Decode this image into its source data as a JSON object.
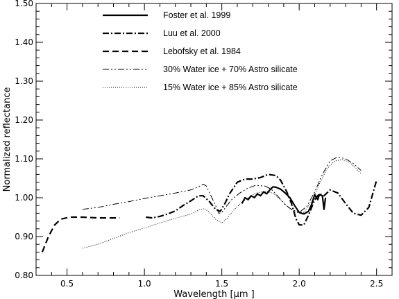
{
  "chart_data": {
    "type": "line",
    "title": "",
    "xlabel": "Wavelength [μm ]",
    "ylabel": "Normalized reflectance",
    "xlim": [
      0.3,
      2.6
    ],
    "ylim": [
      0.8,
      1.5
    ],
    "grid": false,
    "legend_position": "top-center",
    "x_ticks": [
      0.5,
      1.0,
      1.5,
      2.0,
      2.5
    ],
    "x_tick_labels": [
      "0.5",
      "1.0",
      "1.5",
      "2.0",
      "2.5"
    ],
    "y_ticks": [
      0.8,
      0.9,
      1.0,
      1.1,
      1.2,
      1.3,
      1.4,
      1.5
    ],
    "y_tick_labels": [
      "0.80",
      "0.90",
      "1.00",
      "1.10",
      "1.20",
      "1.30",
      "1.40",
      "1.50"
    ],
    "series": [
      {
        "name": "Foster et al. 1999",
        "style": "solid",
        "width": 2.2,
        "segments": [
          [
            [
              1.63,
              0.985
            ],
            [
              1.65,
              1.0
            ],
            [
              1.67,
              0.995
            ],
            [
              1.69,
              1.005
            ],
            [
              1.71,
              1.0
            ],
            [
              1.73,
              1.01
            ],
            [
              1.75,
              1.005
            ],
            [
              1.77,
              1.015
            ],
            [
              1.79,
              1.01
            ],
            [
              1.81,
              1.02
            ],
            [
              1.83,
              1.028
            ],
            [
              1.85,
              1.027
            ],
            [
              1.88,
              1.022
            ],
            [
              1.91,
              1.012
            ],
            [
              1.94,
              1.0
            ],
            [
              1.97,
              0.98
            ],
            [
              2.0,
              0.962
            ],
            [
              2.03,
              0.958
            ],
            [
              2.06,
              0.965
            ],
            [
              2.08,
              0.982
            ],
            [
              2.1,
              1.008
            ],
            [
              2.12,
              0.995
            ],
            [
              2.13,
              1.008
            ],
            [
              2.15,
              1.005
            ],
            [
              2.16,
              0.97
            ],
            [
              2.17,
              1.0
            ]
          ]
        ]
      },
      {
        "name": "Luu et al. 2000",
        "style": "dashdot",
        "width": 2.2,
        "segments": [
          [
            [
              1.01,
              0.95
            ],
            [
              1.05,
              0.948
            ],
            [
              1.1,
              0.952
            ],
            [
              1.15,
              0.958
            ],
            [
              1.2,
              0.966
            ],
            [
              1.25,
              0.98
            ],
            [
              1.3,
              0.992
            ],
            [
              1.35,
              1.005
            ],
            [
              1.38,
              1.005
            ],
            [
              1.42,
              0.99
            ],
            [
              1.46,
              0.97
            ],
            [
              1.49,
              0.965
            ],
            [
              1.52,
              0.985
            ],
            [
              1.55,
              1.01
            ],
            [
              1.6,
              1.04
            ],
            [
              1.65,
              1.048
            ],
            [
              1.7,
              1.048
            ],
            [
              1.75,
              1.052
            ],
            [
              1.8,
              1.06
            ],
            [
              1.85,
              1.057
            ],
            [
              1.88,
              1.045
            ],
            [
              1.92,
              1.015
            ],
            [
              1.95,
              0.985
            ],
            [
              1.98,
              0.945
            ],
            [
              2.0,
              0.93
            ],
            [
              2.03,
              0.93
            ],
            [
              2.06,
              0.955
            ],
            [
              2.1,
              0.995
            ],
            [
              2.13,
              1.01
            ],
            [
              2.16,
              1.005
            ],
            [
              2.2,
              1.02
            ],
            [
              2.25,
              1.012
            ],
            [
              2.3,
              0.985
            ],
            [
              2.35,
              0.96
            ],
            [
              2.4,
              0.955
            ],
            [
              2.45,
              0.975
            ],
            [
              2.5,
              1.045
            ]
          ]
        ]
      },
      {
        "name": "Lebofsky et al. 1984",
        "style": "dashed",
        "width": 2.2,
        "segments": [
          [
            [
              0.34,
              0.86
            ],
            [
              0.38,
              0.9
            ],
            [
              0.42,
              0.93
            ],
            [
              0.46,
              0.945
            ],
            [
              0.52,
              0.95
            ],
            [
              0.6,
              0.95
            ],
            [
              0.7,
              0.948
            ],
            [
              0.84,
              0.948
            ]
          ]
        ]
      },
      {
        "name": "30% Water ice + 70% Astro silicate",
        "style": "dashdotdot",
        "width": 1,
        "segments": [
          [
            [
              0.6,
              0.97
            ],
            [
              0.7,
              0.975
            ],
            [
              0.8,
              0.983
            ],
            [
              0.9,
              0.99
            ],
            [
              1.0,
              0.998
            ],
            [
              1.1,
              1.005
            ],
            [
              1.2,
              1.012
            ],
            [
              1.3,
              1.02
            ],
            [
              1.35,
              1.028
            ],
            [
              1.38,
              1.035
            ],
            [
              1.4,
              1.03
            ],
            [
              1.43,
              1.005
            ],
            [
              1.46,
              0.98
            ],
            [
              1.48,
              0.96
            ],
            [
              1.5,
              0.962
            ],
            [
              1.53,
              0.978
            ],
            [
              1.57,
              0.998
            ],
            [
              1.62,
              1.013
            ],
            [
              1.67,
              1.025
            ],
            [
              1.72,
              1.032
            ],
            [
              1.78,
              1.03
            ],
            [
              1.82,
              1.022
            ],
            [
              1.86,
              1.005
            ],
            [
              1.9,
              0.985
            ],
            [
              1.95,
              0.97
            ],
            [
              2.0,
              0.962
            ],
            [
              2.05,
              0.978
            ],
            [
              2.1,
              1.015
            ],
            [
              2.15,
              1.06
            ],
            [
              2.2,
              1.095
            ],
            [
              2.25,
              1.105
            ],
            [
              2.3,
              1.1
            ],
            [
              2.35,
              1.088
            ],
            [
              2.4,
              1.07
            ]
          ]
        ]
      },
      {
        "name": "15% Water ice + 85% Astro silicate",
        "style": "dotted",
        "width": 1,
        "segments": [
          [
            [
              0.6,
              0.87
            ],
            [
              0.7,
              0.88
            ],
            [
              0.8,
              0.895
            ],
            [
              0.9,
              0.91
            ],
            [
              1.0,
              0.922
            ],
            [
              1.1,
              0.935
            ],
            [
              1.2,
              0.947
            ],
            [
              1.3,
              0.958
            ],
            [
              1.36,
              0.97
            ],
            [
              1.39,
              0.972
            ],
            [
              1.42,
              0.962
            ],
            [
              1.46,
              0.945
            ],
            [
              1.5,
              0.935
            ],
            [
              1.53,
              0.945
            ],
            [
              1.57,
              0.965
            ],
            [
              1.62,
              0.985
            ],
            [
              1.67,
              1.0
            ],
            [
              1.72,
              1.012
            ],
            [
              1.78,
              1.017
            ],
            [
              1.83,
              1.012
            ],
            [
              1.88,
              0.995
            ],
            [
              1.93,
              0.975
            ],
            [
              1.98,
              0.962
            ],
            [
              2.03,
              0.962
            ],
            [
              2.08,
              0.99
            ],
            [
              2.13,
              1.035
            ],
            [
              2.18,
              1.075
            ],
            [
              2.23,
              1.095
            ],
            [
              2.28,
              1.098
            ],
            [
              2.33,
              1.09
            ],
            [
              2.38,
              1.07
            ],
            [
              2.4,
              1.062
            ]
          ]
        ]
      }
    ]
  }
}
